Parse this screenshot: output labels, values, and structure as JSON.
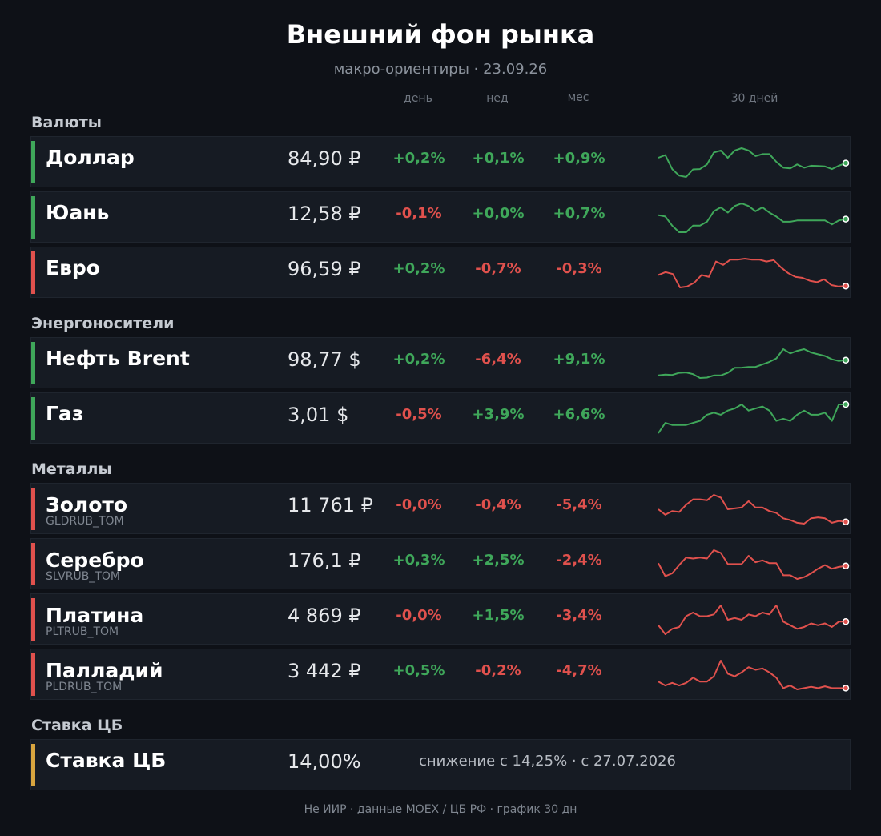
{
  "header": {
    "title": "Внешний фон рынка",
    "subtitle": "макро-ориентиры · 23.09.26"
  },
  "columns": {
    "day": "день",
    "week": "нед",
    "month": "мес",
    "chart": "30 дней"
  },
  "colors": {
    "positive": "#3fa75a",
    "negative": "#e0514d",
    "neutral": "#d8a53f"
  },
  "sections": [
    {
      "title": "Валюты",
      "rows": [
        {
          "name": "Доллар",
          "price": "84,90 ₽",
          "day": "+0,2%",
          "week": "+0,1%",
          "month": "+0,9%",
          "trend": "up",
          "spark": [
            84.2,
            84.28,
            83.86,
            83.66,
            83.62,
            83.85,
            83.86,
            84.0,
            84.36,
            84.42,
            84.2,
            84.42,
            84.49,
            84.42,
            84.25,
            84.31,
            84.31,
            84.08,
            83.9,
            83.88,
            84.0,
            83.9,
            83.96,
            83.95,
            83.94,
            83.86,
            83.96,
            84.04
          ]
        },
        {
          "name": "Юань",
          "price": "12,58 ₽",
          "day": "-0,1%",
          "week": "+0,0%",
          "month": "+0,7%",
          "trend": "up",
          "spark": [
            12.46,
            12.45,
            12.38,
            12.33,
            12.33,
            12.38,
            12.38,
            12.41,
            12.49,
            12.52,
            12.48,
            12.53,
            12.55,
            12.53,
            12.49,
            12.52,
            12.48,
            12.45,
            12.41,
            12.41,
            12.42,
            12.42,
            12.42,
            12.42,
            12.42,
            12.39,
            12.42,
            12.43
          ]
        },
        {
          "name": "Евро",
          "price": "96,59 ₽",
          "day": "+0,2%",
          "week": "-0,7%",
          "month": "-0,3%",
          "trend": "down",
          "spark": [
            96.86,
            96.92,
            96.88,
            96.6,
            96.62,
            96.7,
            96.86,
            96.82,
            97.14,
            97.07,
            97.18,
            97.18,
            97.2,
            97.18,
            97.18,
            97.14,
            97.17,
            97.02,
            96.9,
            96.82,
            96.8,
            96.74,
            96.71,
            96.77,
            96.65,
            96.62,
            96.63
          ]
        }
      ]
    },
    {
      "title": "Энергоносители",
      "rows": [
        {
          "name": "Нефть Brent",
          "price": "98,77 $",
          "day": "+0,2%",
          "week": "-6,4%",
          "month": "+9,1%",
          "trend": "up",
          "spark": [
            91.2,
            91.3,
            91.26,
            91.5,
            91.55,
            91.35,
            90.9,
            90.95,
            91.2,
            91.2,
            91.5,
            92.1,
            92.12,
            92.2,
            92.2,
            92.5,
            92.8,
            93.2,
            94.3,
            93.8,
            94.1,
            94.3,
            93.9,
            93.7,
            93.5,
            93.1,
            92.9,
            93.0
          ]
        },
        {
          "name": "Газ",
          "price": "3,01 $",
          "day": "-0,5%",
          "week": "+3,9%",
          "month": "+6,6%",
          "trend": "up",
          "spark": [
            2.82,
            2.87,
            2.86,
            2.86,
            2.86,
            2.87,
            2.88,
            2.91,
            2.92,
            2.91,
            2.93,
            2.94,
            2.96,
            2.93,
            2.94,
            2.95,
            2.93,
            2.88,
            2.89,
            2.88,
            2.91,
            2.93,
            2.91,
            2.91,
            2.92,
            2.88,
            2.96,
            2.96
          ]
        }
      ]
    },
    {
      "title": "Металлы",
      "rows": [
        {
          "name": "Золото",
          "ticker": "GLDRUB_TOM",
          "price": "11 761 ₽",
          "day": "-0,0%",
          "week": "-0,4%",
          "month": "-5,4%",
          "trend": "down",
          "spark": [
            12140,
            12080,
            12120,
            12110,
            12190,
            12250,
            12250,
            12240,
            12300,
            12270,
            12140,
            12150,
            12160,
            12230,
            12160,
            12160,
            12120,
            12100,
            12040,
            12020,
            11990,
            11980,
            12040,
            12050,
            12040,
            11990,
            12010,
            12000
          ]
        },
        {
          "name": "Серебро",
          "ticker": "SLVRUB_TOM",
          "price": "176,1 ₽",
          "day": "+0,3%",
          "week": "+2,5%",
          "month": "-2,4%",
          "trend": "down",
          "spark": [
            180.6,
            179.2,
            179.5,
            180.4,
            181.2,
            181.1,
            181.2,
            181.1,
            182.0,
            181.7,
            180.5,
            180.5,
            180.5,
            181.4,
            180.7,
            180.9,
            180.6,
            180.6,
            179.3,
            179.3,
            178.9,
            179.1,
            179.5,
            180.0,
            180.4,
            180.0,
            180.2,
            180.3
          ]
        },
        {
          "name": "Платина",
          "ticker": "PLTRUB_TOM",
          "price": "4 869 ₽",
          "day": "-0,0%",
          "week": "+1,5%",
          "month": "-3,4%",
          "trend": "down",
          "spark": [
            5060,
            5010,
            5040,
            5050,
            5110,
            5130,
            5110,
            5110,
            5120,
            5170,
            5090,
            5100,
            5090,
            5120,
            5110,
            5130,
            5120,
            5170,
            5080,
            5060,
            5040,
            5050,
            5070,
            5060,
            5070,
            5050,
            5080,
            5080
          ]
        },
        {
          "name": "Палладий",
          "ticker": "PLDRUB_TOM",
          "price": "3 442 ₽",
          "day": "+0,5%",
          "week": "-0,2%",
          "month": "-4,7%",
          "trend": "down",
          "spark": [
            3520,
            3505,
            3515,
            3505,
            3515,
            3535,
            3520,
            3520,
            3540,
            3600,
            3550,
            3540,
            3555,
            3575,
            3565,
            3570,
            3555,
            3535,
            3495,
            3505,
            3490,
            3495,
            3500,
            3495,
            3502,
            3495,
            3495,
            3495
          ]
        }
      ]
    },
    {
      "title": "Ставка ЦБ",
      "rows": [
        {
          "name": "Ставка ЦБ",
          "price": "14,00%",
          "note": "снижение с 14,25% · с 27.07.2026",
          "trend": "neutral"
        }
      ]
    }
  ],
  "footer": "Не ИИР  ·  данные MOEX / ЦБ РФ  ·  график 30 дн"
}
